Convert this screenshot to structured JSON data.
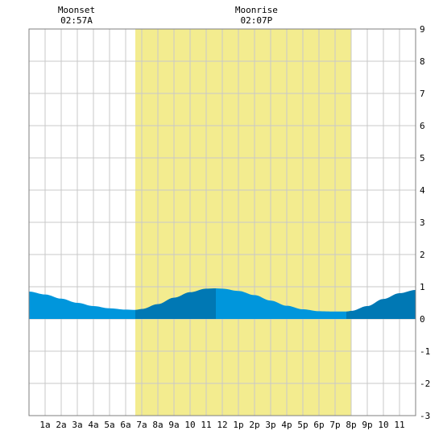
{
  "colors": {
    "background": "#ffffff",
    "daylight": "#f3ec8f",
    "grid": "#c8c8c8",
    "tide_fill": "#0096dc",
    "tide_fill_dark": "#0078b4",
    "frame": "#7f7f7f",
    "text": "#000000"
  },
  "moon_events": [
    {
      "label": "Moonset",
      "time_label": "02:57A",
      "hour": 2.95
    },
    {
      "label": "Moonrise",
      "time_label": "02:07P",
      "hour": 14.12
    }
  ],
  "chart_data": {
    "type": "area",
    "xlim": [
      0,
      24
    ],
    "ylim": [
      -3,
      9
    ],
    "grid": true,
    "x_tick_labels": [
      "1a",
      "2a",
      "3a",
      "4a",
      "5a",
      "6a",
      "7a",
      "8a",
      "9a",
      "10",
      "11",
      "12",
      "1p",
      "2p",
      "3p",
      "4p",
      "5p",
      "6p",
      "7p",
      "8p",
      "9p",
      "10",
      "11"
    ],
    "y_tick_labels": [
      "-3",
      "-2",
      "-1",
      "0",
      "1",
      "2",
      "3",
      "4",
      "5",
      "6",
      "7",
      "8",
      "9"
    ],
    "daylight": {
      "start": 6.6,
      "end": 20.0
    },
    "series": [
      {
        "x": [
          0,
          1,
          2,
          3,
          4,
          5,
          6,
          6.6,
          7,
          8,
          9,
          10,
          11,
          11.6,
          12,
          13,
          14,
          15,
          16,
          17,
          18,
          19,
          19.7,
          20,
          21,
          22,
          23,
          24
        ],
        "values": [
          0.85,
          0.76,
          0.63,
          0.5,
          0.4,
          0.33,
          0.29,
          0.28,
          0.31,
          0.46,
          0.66,
          0.83,
          0.94,
          0.95,
          0.94,
          0.87,
          0.74,
          0.57,
          0.41,
          0.3,
          0.24,
          0.23,
          0.23,
          0.25,
          0.4,
          0.62,
          0.8,
          0.9
        ]
      }
    ],
    "tide_events": [
      {
        "type": "low",
        "hour": 6.6
      },
      {
        "type": "high",
        "hour": 11.6
      },
      {
        "type": "low",
        "hour": 19.7
      }
    ]
  }
}
